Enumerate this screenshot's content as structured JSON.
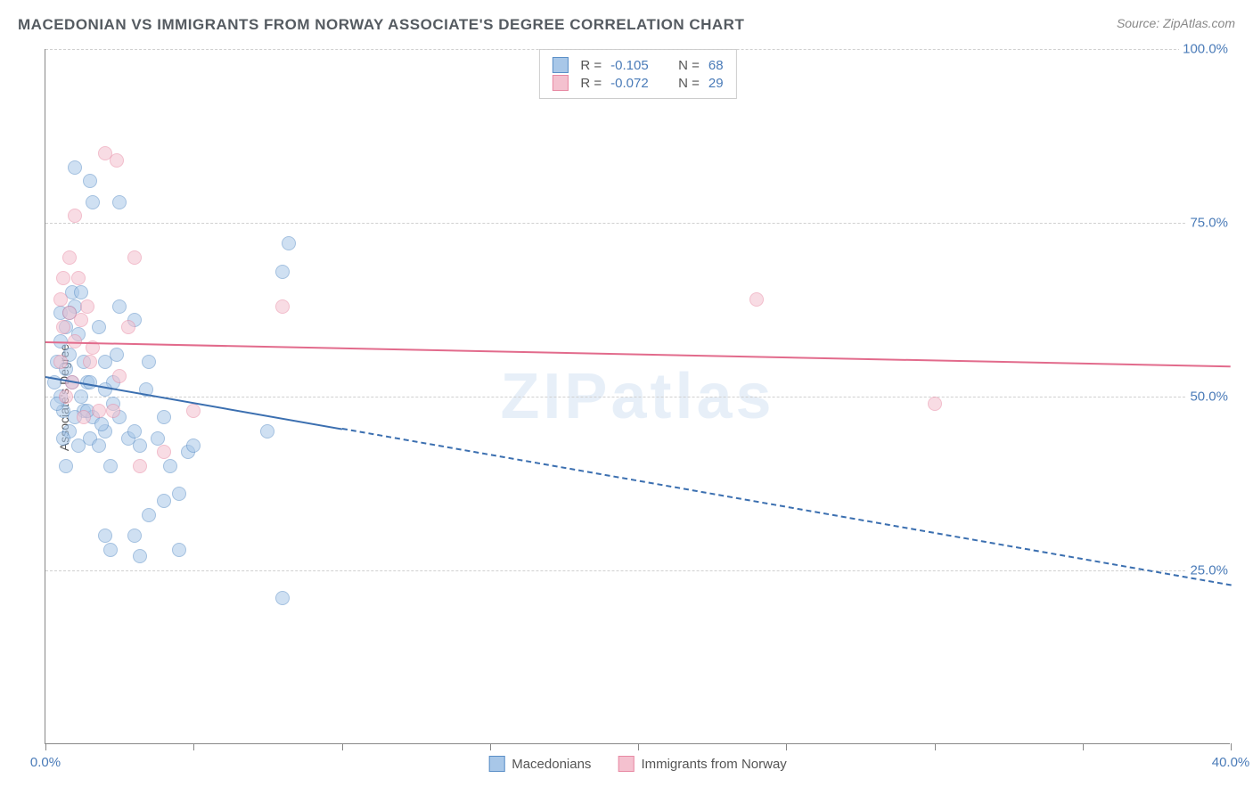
{
  "title": "MACEDONIAN VS IMMIGRANTS FROM NORWAY ASSOCIATE'S DEGREE CORRELATION CHART",
  "source": "Source: ZipAtlas.com",
  "watermark": "ZIPatlas",
  "y_axis_label": "Associate's Degree",
  "chart": {
    "type": "scatter-with-trendlines",
    "background_color": "#ffffff",
    "grid_color": "#d0d0d0",
    "xlim": [
      0,
      40
    ],
    "ylim": [
      0,
      100
    ],
    "xticks": [
      0,
      5,
      10,
      15,
      20,
      25,
      30,
      35,
      40
    ],
    "xtick_labels": {
      "0": "0.0%",
      "40": "40.0%"
    },
    "yticks": [
      25,
      50,
      75,
      100
    ],
    "ytick_labels": {
      "25": "25.0%",
      "50": "50.0%",
      "75": "75.0%",
      "100": "100.0%"
    },
    "marker_radius": 8,
    "marker_opacity": 0.55,
    "series": [
      {
        "id": "macedonians",
        "label": "Macedonians",
        "color_fill": "#a8c7e8",
        "color_stroke": "#5b8fc7",
        "R": "-0.105",
        "N": "68",
        "trend": {
          "x1": 0,
          "y1": 53.0,
          "x2": 40,
          "y2": 23.0,
          "solid_until_x": 10,
          "line_color": "#3b6fb0",
          "line_width": 2
        },
        "points": [
          [
            0.3,
            52
          ],
          [
            0.4,
            55
          ],
          [
            0.5,
            58
          ],
          [
            0.5,
            50
          ],
          [
            0.6,
            48
          ],
          [
            0.7,
            54
          ],
          [
            0.7,
            60
          ],
          [
            0.8,
            45
          ],
          [
            0.8,
            56
          ],
          [
            0.9,
            52
          ],
          [
            1.0,
            83
          ],
          [
            1.5,
            81
          ],
          [
            1.0,
            63
          ],
          [
            1.1,
            59
          ],
          [
            1.2,
            50
          ],
          [
            1.3,
            48
          ],
          [
            1.3,
            55
          ],
          [
            1.4,
            52
          ],
          [
            1.5,
            44
          ],
          [
            1.6,
            47
          ],
          [
            1.8,
            43
          ],
          [
            2.0,
            45
          ],
          [
            2.0,
            55
          ],
          [
            2.2,
            40
          ],
          [
            2.3,
            52
          ],
          [
            2.4,
            56
          ],
          [
            2.5,
            63
          ],
          [
            2.5,
            47
          ],
          [
            2.8,
            44
          ],
          [
            3.0,
            61
          ],
          [
            3.0,
            45
          ],
          [
            3.2,
            43
          ],
          [
            3.4,
            51
          ],
          [
            3.5,
            55
          ],
          [
            3.8,
            44
          ],
          [
            4.0,
            47
          ],
          [
            4.2,
            40
          ],
          [
            4.5,
            36
          ],
          [
            4.8,
            42
          ],
          [
            5.0,
            43
          ],
          [
            2.0,
            30
          ],
          [
            2.2,
            28
          ],
          [
            3.0,
            30
          ],
          [
            3.2,
            27
          ],
          [
            3.5,
            33
          ],
          [
            4.0,
            35
          ],
          [
            4.5,
            28
          ],
          [
            8.0,
            21
          ],
          [
            8.2,
            72
          ],
          [
            8.0,
            68
          ],
          [
            7.5,
            45
          ],
          [
            1.6,
            78
          ],
          [
            2.5,
            78
          ],
          [
            0.9,
            65
          ],
          [
            1.2,
            65
          ],
          [
            0.5,
            62
          ],
          [
            0.8,
            62
          ],
          [
            1.8,
            60
          ],
          [
            1.0,
            47
          ],
          [
            0.6,
            44
          ],
          [
            2.0,
            51
          ],
          [
            2.3,
            49
          ],
          [
            1.5,
            52
          ],
          [
            0.7,
            40
          ],
          [
            1.1,
            43
          ],
          [
            1.4,
            48
          ],
          [
            1.9,
            46
          ],
          [
            0.4,
            49
          ]
        ]
      },
      {
        "id": "norway",
        "label": "Immigrants from Norway",
        "color_fill": "#f4c1cf",
        "color_stroke": "#e889a3",
        "R": "-0.072",
        "N": "29",
        "trend": {
          "x1": 0,
          "y1": 58.0,
          "x2": 40,
          "y2": 54.5,
          "solid_until_x": 40,
          "line_color": "#e26b8c",
          "line_width": 2
        },
        "points": [
          [
            0.5,
            64
          ],
          [
            0.6,
            60
          ],
          [
            0.8,
            62
          ],
          [
            1.0,
            58
          ],
          [
            1.0,
            76
          ],
          [
            1.2,
            61
          ],
          [
            1.5,
            55
          ],
          [
            2.0,
            85
          ],
          [
            2.4,
            84
          ],
          [
            3.0,
            70
          ],
          [
            0.7,
            50
          ],
          [
            0.9,
            52
          ],
          [
            1.3,
            47
          ],
          [
            1.8,
            48
          ],
          [
            2.3,
            48
          ],
          [
            3.2,
            40
          ],
          [
            4.0,
            42
          ],
          [
            5.0,
            48
          ],
          [
            2.5,
            53
          ],
          [
            0.5,
            55
          ],
          [
            0.6,
            67
          ],
          [
            1.1,
            67
          ],
          [
            1.4,
            63
          ],
          [
            1.6,
            57
          ],
          [
            8.0,
            63
          ],
          [
            24.0,
            64
          ],
          [
            30.0,
            49
          ],
          [
            2.8,
            60
          ],
          [
            0.8,
            70
          ]
        ]
      }
    ]
  }
}
